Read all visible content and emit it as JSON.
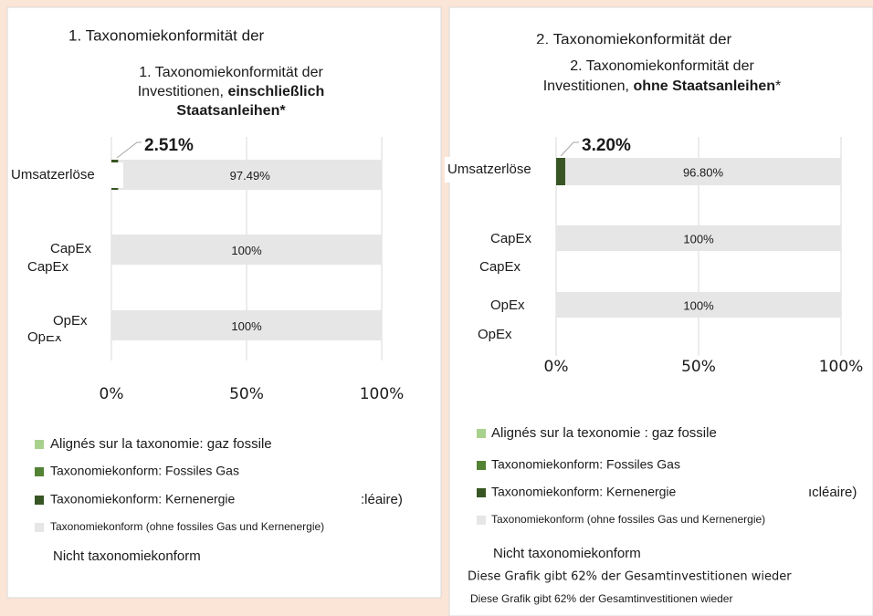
{
  "chart_data": [
    {
      "type": "bar",
      "orientation": "horizontal",
      "stacked": true,
      "title": [
        [
          {
            "text": "1. Taxonomiekonformität der"
          }
        ],
        [
          {
            "text": "Investitionen, "
          },
          {
            "text": "einschließlich",
            "bold": true
          }
        ],
        [
          {
            "text": "Staatsanleihen*",
            "bold": true
          }
        ]
      ],
      "categories": [
        "Umsatzerlöse",
        "CapEx",
        "OpEx"
      ],
      "series": [
        {
          "name": "Alignés sur la taxonomie: gaz fossile",
          "color": "#a9d18e"
        },
        {
          "name": "Taxonomiekonform: Fossiles Gas",
          "color": "#548235"
        },
        {
          "name": "Taxonomiekonform: Kernenergie",
          "color": "#375623",
          "values": [
            2.51,
            0,
            0
          ],
          "value_labels": [
            "2.51%",
            null,
            null
          ]
        },
        {
          "name": "Taxonomiekonform (ohne fossiles Gas und Kernenergie)",
          "color": "#e7e6e6",
          "values": [
            97.49,
            100,
            100
          ],
          "value_labels": [
            "97.49%",
            "100%",
            "100%"
          ]
        },
        {
          "name": "Nicht taxonomiekonform"
        }
      ],
      "xlim": [
        0,
        100
      ],
      "xticks": [
        {
          "value": 0,
          "label": "0%"
        },
        {
          "value": 50,
          "label": "50%"
        },
        {
          "value": 100,
          "label": "100%"
        }
      ],
      "grid": true,
      "ghost_texts": [
        "1. Taxonomiekonformität der",
        "CapEx",
        "OpEx",
        ":léaire)"
      ]
    },
    {
      "type": "bar",
      "orientation": "horizontal",
      "stacked": true,
      "title": [
        [
          {
            "text": "2. Taxonomiekonformität der"
          }
        ],
        [
          {
            "text": "Investitionen, "
          },
          {
            "text": "ohne Staatsanleihen",
            "bold": true
          },
          {
            "text": "*"
          }
        ]
      ],
      "categories": [
        "Umsatzerlöse",
        "CapEx",
        "OpEx"
      ],
      "series": [
        {
          "name": "Alignés sur la texonomie : gaz fossile",
          "color": "#a9d18e"
        },
        {
          "name": "Taxonomiekonform: Fossiles Gas",
          "color": "#548235"
        },
        {
          "name": "Taxonomiekonform: Kernenergie",
          "color": "#375623",
          "values": [
            3.2,
            0,
            0
          ],
          "value_labels": [
            "3.20%",
            null,
            null
          ]
        },
        {
          "name": "Taxonomiekonform (ohne fossiles Gas und Kernenergie)",
          "color": "#e7e6e6",
          "values": [
            96.8,
            100,
            100
          ],
          "value_labels": [
            "96.80%",
            "100%",
            "100%"
          ]
        },
        {
          "name": "Nicht taxonomiekonform"
        }
      ],
      "xlim": [
        0,
        100
      ],
      "xticks": [
        {
          "value": 0,
          "label": "0%"
        },
        {
          "value": 50,
          "label": "50%"
        },
        {
          "value": 100,
          "label": "100%"
        }
      ],
      "grid": true,
      "ghost_texts": [
        "2. Taxonomiekonformität der",
        "CapEx",
        "OpEx",
        "ıcléaire)",
        "Diese Grafik gibt 62% der Gesamtinvestitionen wieder"
      ],
      "footnote": "Diese Grafik gibt 62% der Gesamtinvestitionen wieder"
    }
  ]
}
